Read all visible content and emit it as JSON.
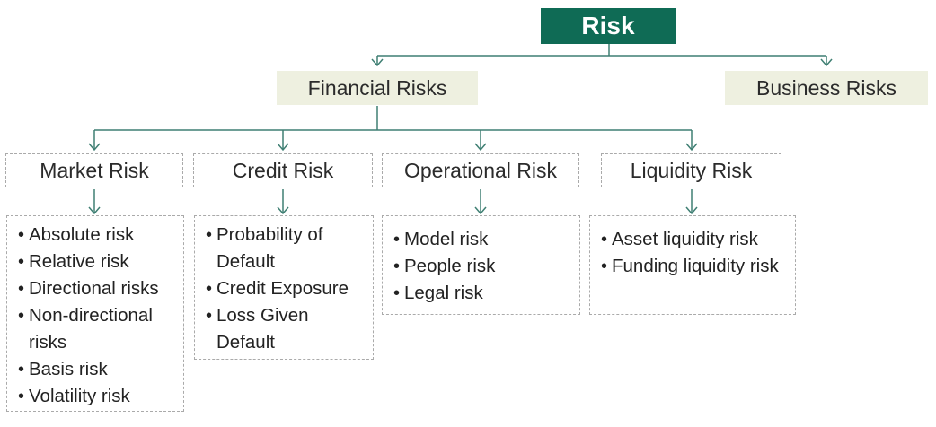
{
  "root": {
    "label": "Risk"
  },
  "level1": [
    {
      "label": "Financial Risks"
    },
    {
      "label": "Business Risks"
    }
  ],
  "categories": [
    {
      "label": "Market Risk",
      "items": [
        "Absolute risk",
        "Relative risk",
        "Directional risks",
        "Non-directional risks",
        "Basis risk",
        "Volatility risk"
      ]
    },
    {
      "label": "Credit Risk",
      "items": [
        "Probability of Default",
        "Credit Exposure",
        "Loss Given Default"
      ]
    },
    {
      "label": "Operational Risk",
      "items": [
        "Model risk",
        "People risk",
        "Legal risk"
      ]
    },
    {
      "label": "Liquidity Risk",
      "items": [
        "Asset liquidity risk",
        "Funding liquidity risk"
      ]
    }
  ],
  "colors": {
    "root_fill": "#0f6b55",
    "level1_fill": "#eef0e0",
    "connector": "#3f7f73",
    "dashed_border": "#aaaaaa"
  }
}
